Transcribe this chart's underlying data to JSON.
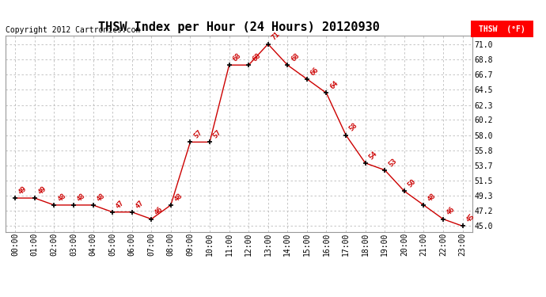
{
  "title": "THSW Index per Hour (24 Hours) 20120930",
  "copyright": "Copyright 2012 Cartronics.com",
  "legend_label": "THSW  (°F)",
  "hours": [
    0,
    1,
    2,
    3,
    4,
    5,
    6,
    7,
    8,
    9,
    10,
    11,
    12,
    13,
    14,
    15,
    16,
    17,
    18,
    19,
    20,
    21,
    22,
    23
  ],
  "values": [
    49,
    49,
    48,
    48,
    48,
    47,
    47,
    46,
    48,
    57,
    57,
    68,
    68,
    71,
    68,
    66,
    64,
    58,
    54,
    53,
    50,
    48,
    46,
    45
  ],
  "x_labels": [
    "00:00",
    "01:00",
    "02:00",
    "03:00",
    "04:00",
    "05:00",
    "06:00",
    "07:00",
    "08:00",
    "09:00",
    "10:00",
    "11:00",
    "12:00",
    "13:00",
    "14:00",
    "15:00",
    "16:00",
    "17:00",
    "18:00",
    "19:00",
    "20:00",
    "21:00",
    "22:00",
    "23:00"
  ],
  "y_ticks": [
    45.0,
    47.2,
    49.3,
    51.5,
    53.7,
    55.8,
    58.0,
    60.2,
    62.3,
    64.5,
    66.7,
    68.8,
    71.0
  ],
  "ylim_min": 44.2,
  "ylim_max": 72.2,
  "line_color": "#cc0000",
  "marker_color": "#000000",
  "label_color": "#cc0000",
  "background_color": "#ffffff",
  "grid_color": "#bbbbbb",
  "title_fontsize": 11,
  "label_fontsize": 6.5,
  "tick_fontsize": 7,
  "copyright_fontsize": 7
}
